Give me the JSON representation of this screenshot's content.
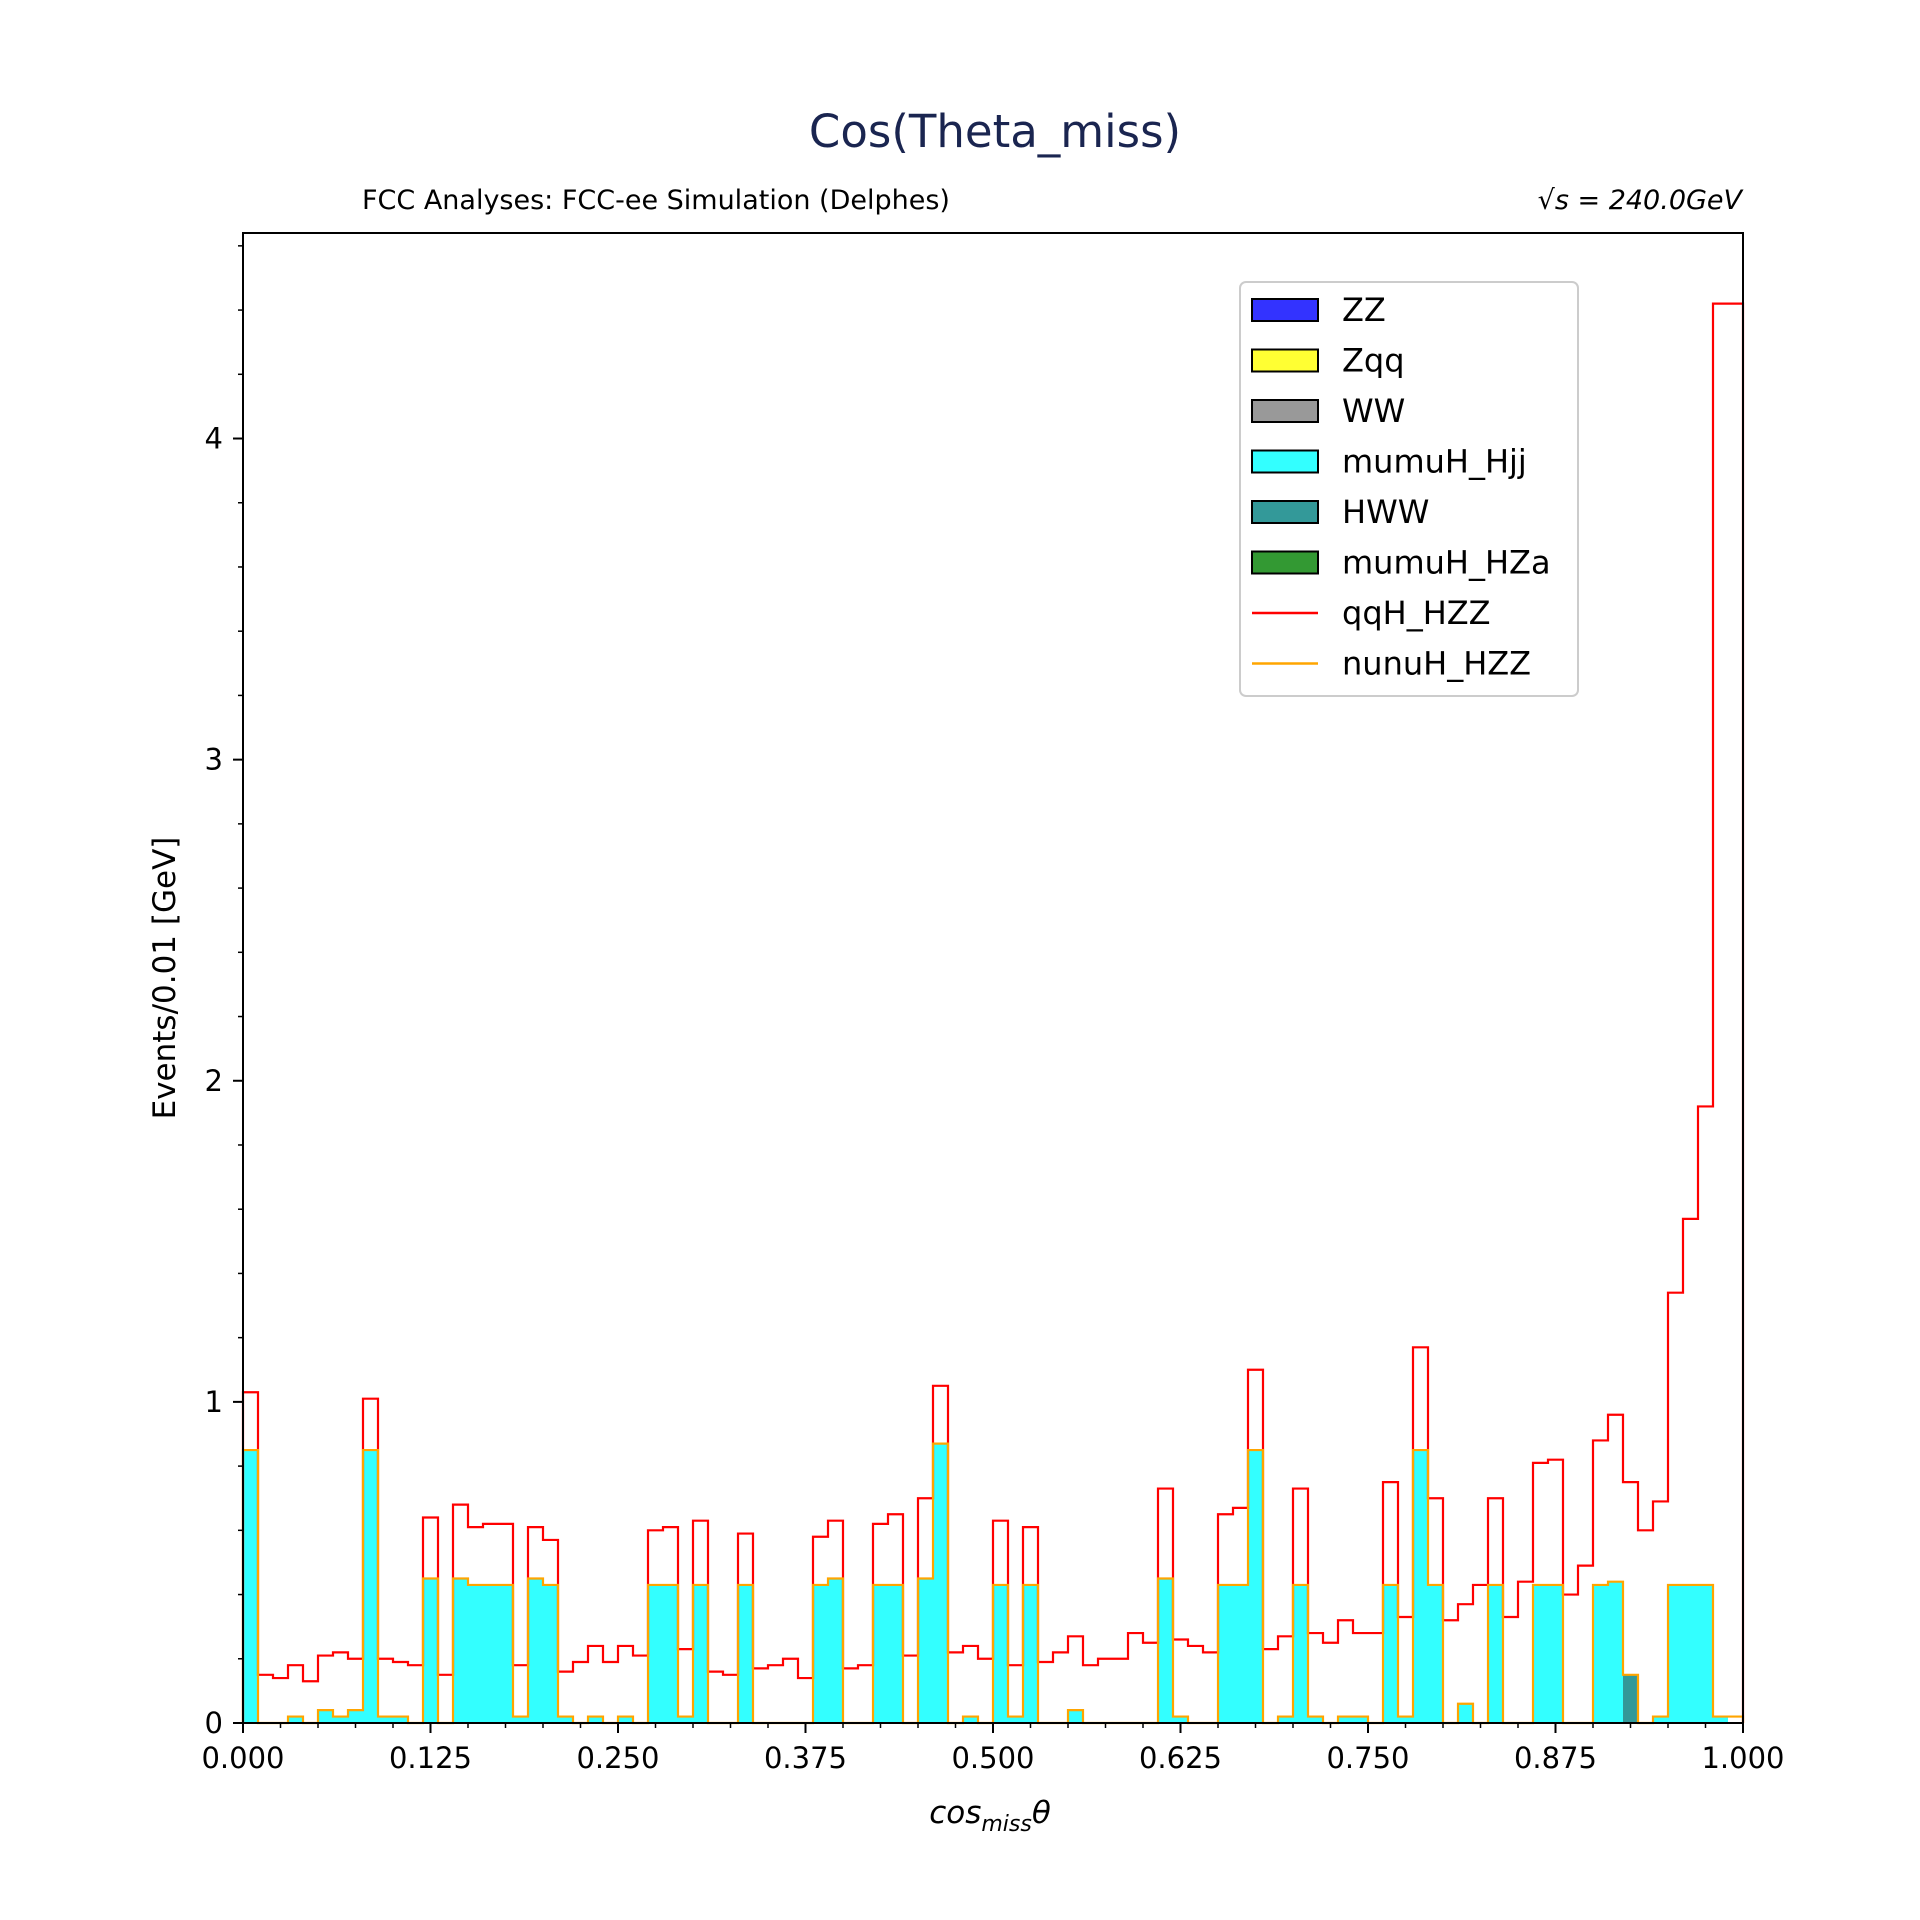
{
  "chart_data": {
    "type": "histogram",
    "title": "Cos(Theta_miss)",
    "subtitle_left": "FCC Analyses: FCC-ee Simulation (Delphes)",
    "subtitle_right": "√s = 240.0GeV",
    "xlabel_main": "cos",
    "xlabel_sub": "miss",
    "xlabel_tail": "θ",
    "ylabel": "Events/0.01 [GeV]",
    "xlim": [
      0.0,
      1.0
    ],
    "ylim": [
      0,
      4.64
    ],
    "bin_width": 0.01,
    "x_ticks": [
      "0.000",
      "0.125",
      "0.250",
      "0.375",
      "0.500",
      "0.625",
      "0.750",
      "0.875",
      "1.000"
    ],
    "y_ticks": [
      "0",
      "1",
      "2",
      "3",
      "4"
    ],
    "legend_position": "upper-right",
    "legend": [
      {
        "label": "ZZ",
        "kind": "box",
        "color": "#3333ff"
      },
      {
        "label": "Zqq",
        "kind": "box",
        "color": "#ffff33"
      },
      {
        "label": "WW",
        "kind": "box",
        "color": "#999999"
      },
      {
        "label": "mumuH_Hjj",
        "kind": "box",
        "color": "#33ffff"
      },
      {
        "label": "HWW",
        "kind": "box",
        "color": "#339999"
      },
      {
        "label": "mumuH_HZa",
        "kind": "box",
        "color": "#339933"
      },
      {
        "label": "qqH_HZZ",
        "kind": "line",
        "color": "#ff0000"
      },
      {
        "label": "nunuH_HZZ",
        "kind": "line",
        "color": "#ffa500"
      }
    ],
    "series": [
      {
        "name": "mumuH_Hjj",
        "style": "filled",
        "color": "#33ffff",
        "values": [
          0.85,
          0,
          0,
          0.02,
          0,
          0.04,
          0.02,
          0.04,
          0.85,
          0.02,
          0.02,
          0,
          0.45,
          0,
          0.45,
          0.43,
          0.43,
          0.43,
          0.02,
          0.45,
          0.43,
          0.02,
          0,
          0.02,
          0,
          0.02,
          0,
          0.43,
          0.43,
          0.02,
          0.43,
          0,
          0,
          0.43,
          0,
          0,
          0,
          0,
          0.43,
          0.45,
          0,
          0,
          0.43,
          0.43,
          0,
          0.45,
          0.87,
          0,
          0.02,
          0,
          0.43,
          0.02,
          0.43,
          0,
          0,
          0.04,
          0,
          0,
          0,
          0,
          0,
          0.45,
          0.02,
          0,
          0,
          0.43,
          0.43,
          0.85,
          0,
          0.02,
          0.43,
          0.02,
          0,
          0.02,
          0.02,
          0,
          0.43,
          0.02,
          0.85,
          0.43,
          0,
          0.06,
          0,
          0.43,
          0,
          0,
          0.43,
          0.43,
          0,
          0,
          0.43,
          0.44,
          0.15,
          0,
          0.02,
          0.43,
          0.43,
          0.43,
          0.02,
          0
        ]
      },
      {
        "name": "HWW",
        "style": "filled",
        "color": "#339999",
        "values": [
          0,
          0,
          0,
          0,
          0,
          0,
          0,
          0,
          0,
          0,
          0,
          0,
          0,
          0,
          0,
          0,
          0,
          0,
          0,
          0,
          0,
          0,
          0,
          0,
          0,
          0,
          0,
          0,
          0,
          0,
          0,
          0,
          0,
          0,
          0,
          0,
          0,
          0,
          0,
          0,
          0,
          0,
          0,
          0,
          0,
          0,
          0,
          0,
          0,
          0,
          0,
          0,
          0,
          0,
          0,
          0,
          0,
          0,
          0,
          0,
          0,
          0,
          0,
          0,
          0,
          0,
          0,
          0,
          0,
          0,
          0,
          0,
          0,
          0,
          0,
          0,
          0,
          0,
          0,
          0,
          0,
          0,
          0,
          0,
          0,
          0,
          0,
          0,
          0,
          0,
          0,
          0,
          0.15,
          0,
          0,
          0,
          0,
          0,
          0,
          0
        ]
      },
      {
        "name": "qqH_HZZ",
        "style": "step",
        "color": "#ff0000",
        "values": [
          1.03,
          0.15,
          0.14,
          0.18,
          0.13,
          0.21,
          0.22,
          0.2,
          1.01,
          0.2,
          0.19,
          0.18,
          0.64,
          0.15,
          0.68,
          0.61,
          0.62,
          0.62,
          0.18,
          0.61,
          0.57,
          0.16,
          0.19,
          0.24,
          0.19,
          0.24,
          0.21,
          0.6,
          0.61,
          0.23,
          0.63,
          0.16,
          0.15,
          0.59,
          0.17,
          0.18,
          0.2,
          0.14,
          0.58,
          0.63,
          0.17,
          0.18,
          0.62,
          0.65,
          0.21,
          0.7,
          1.05,
          0.22,
          0.24,
          0.2,
          0.63,
          0.18,
          0.61,
          0.19,
          0.22,
          0.27,
          0.18,
          0.2,
          0.2,
          0.28,
          0.25,
          0.73,
          0.26,
          0.24,
          0.22,
          0.65,
          0.67,
          1.1,
          0.23,
          0.27,
          0.73,
          0.28,
          0.25,
          0.32,
          0.28,
          0.28,
          0.75,
          0.33,
          1.17,
          0.7,
          0.32,
          0.37,
          0.43,
          0.7,
          0.33,
          0.44,
          0.81,
          0.82,
          0.4,
          0.49,
          0.88,
          0.96,
          0.75,
          0.6,
          0.69,
          1.34,
          1.57,
          1.92,
          4.42,
          4.42
        ]
      },
      {
        "name": "nunuH_HZZ",
        "style": "step",
        "color": "#ffa500",
        "values": [
          0.85,
          0,
          0,
          0.02,
          0,
          0.04,
          0.02,
          0.04,
          0.85,
          0.02,
          0.02,
          0,
          0.45,
          0,
          0.45,
          0.43,
          0.43,
          0.43,
          0.02,
          0.45,
          0.43,
          0.02,
          0,
          0.02,
          0,
          0.02,
          0,
          0.43,
          0.43,
          0.02,
          0.43,
          0,
          0,
          0.43,
          0,
          0,
          0,
          0,
          0.43,
          0.45,
          0,
          0,
          0.43,
          0.43,
          0,
          0.45,
          0.87,
          0,
          0.02,
          0,
          0.43,
          0.02,
          0.43,
          0,
          0,
          0.04,
          0,
          0,
          0,
          0,
          0,
          0.45,
          0.02,
          0,
          0,
          0.43,
          0.43,
          0.85,
          0,
          0.02,
          0.43,
          0.02,
          0,
          0.02,
          0.02,
          0,
          0.43,
          0.02,
          0.85,
          0.43,
          0,
          0.06,
          0,
          0.43,
          0,
          0,
          0.43,
          0.43,
          0,
          0,
          0.43,
          0.44,
          0.15,
          0,
          0.02,
          0.43,
          0.43,
          0.43,
          0.02,
          0.02
        ]
      }
    ]
  }
}
